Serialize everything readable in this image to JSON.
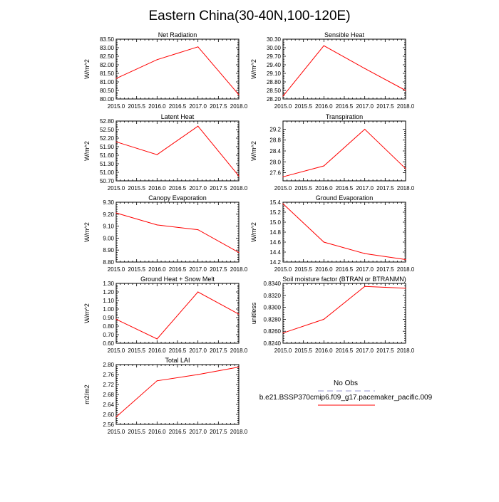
{
  "title": "Eastern China(30-40N,100-120E)",
  "legend": {
    "obs_label": "No Obs",
    "model_label": "b.e21.BSSP370cmip6.f09_g17.pacemaker_pacific.009",
    "obs_color": "#b9b9e0",
    "model_color": "#ff0000"
  },
  "chart_data": [
    {
      "type": "line",
      "title": "Net Radiation",
      "ylabel": "W/m^2",
      "x": [
        2015,
        2016,
        2017,
        2018
      ],
      "values": [
        81.2,
        82.3,
        83.05,
        80.25
      ],
      "xlim": [
        2015,
        2018
      ],
      "ylim": [
        80.0,
        83.5
      ],
      "xticks": [
        "2015.0",
        "2015.5",
        "2016.0",
        "2016.5",
        "2017.0",
        "2017.5",
        "2018.0"
      ],
      "yticks": [
        "80.00",
        "80.50",
        "81.00",
        "81.50",
        "82.00",
        "82.50",
        "83.00",
        "83.50"
      ]
    },
    {
      "type": "line",
      "title": "Sensible Heat",
      "ylabel": "W/m^2",
      "x": [
        2015,
        2016,
        2017,
        2018
      ],
      "values": [
        28.3,
        30.07,
        29.27,
        28.5
      ],
      "xlim": [
        2015,
        2018
      ],
      "ylim": [
        28.2,
        30.3
      ],
      "xticks": [
        "2015.0",
        "2015.5",
        "2016.0",
        "2016.5",
        "2017.0",
        "2017.5",
        "2018.0"
      ],
      "yticks": [
        "28.20",
        "28.50",
        "28.80",
        "29.10",
        "29.40",
        "29.70",
        "30.00",
        "30.30"
      ]
    },
    {
      "type": "line",
      "title": "Latent Heat",
      "ylabel": "W/m^2",
      "x": [
        2015,
        2016,
        2017,
        2018
      ],
      "values": [
        52.07,
        51.62,
        52.62,
        50.87
      ],
      "xlim": [
        2015,
        2018
      ],
      "ylim": [
        50.7,
        52.8
      ],
      "xticks": [
        "2015.0",
        "2015.5",
        "2016.0",
        "2016.5",
        "2017.0",
        "2017.5",
        "2018.0"
      ],
      "yticks": [
        "50.70",
        "51.00",
        "51.30",
        "51.60",
        "51.90",
        "52.20",
        "52.50",
        "52.80"
      ]
    },
    {
      "type": "line",
      "title": "Transpiration",
      "ylabel": "W/m^2",
      "x": [
        2015,
        2016,
        2017,
        2018
      ],
      "values": [
        27.45,
        27.85,
        29.2,
        27.75
      ],
      "xlim": [
        2015,
        2018
      ],
      "ylim": [
        27.3,
        29.5
      ],
      "xticks": [
        "2015.0",
        "2015.5",
        "2016.0",
        "2016.5",
        "2017.0",
        "2017.5",
        "2018.0"
      ],
      "yticks": [
        "27.6",
        "28.0",
        "28.4",
        "28.8",
        "29.2"
      ]
    },
    {
      "type": "line",
      "title": "Canopy Evaporation",
      "ylabel": "W/m^2",
      "x": [
        2015,
        2016,
        2017,
        2018
      ],
      "values": [
        9.21,
        9.11,
        9.07,
        8.88
      ],
      "xlim": [
        2015,
        2018
      ],
      "ylim": [
        8.8,
        9.3
      ],
      "xticks": [
        "2015.0",
        "2015.5",
        "2016.0",
        "2016.5",
        "2017.0",
        "2017.5",
        "2018.0"
      ],
      "yticks": [
        "8.80",
        "8.90",
        "9.00",
        "9.10",
        "9.20",
        "9.30"
      ]
    },
    {
      "type": "line",
      "title": "Ground Evaporation",
      "ylabel": "W/m^2",
      "x": [
        2015,
        2016,
        2017,
        2018
      ],
      "values": [
        15.37,
        14.6,
        14.37,
        14.25
      ],
      "xlim": [
        2015,
        2018
      ],
      "ylim": [
        14.2,
        15.4
      ],
      "xticks": [
        "2015.0",
        "2015.5",
        "2016.0",
        "2016.5",
        "2017.0",
        "2017.5",
        "2018.0"
      ],
      "yticks": [
        "14.2",
        "14.4",
        "14.6",
        "14.8",
        "15.0",
        "15.2",
        "15.4"
      ]
    },
    {
      "type": "line",
      "title": "Ground Heat + Snow Melt",
      "ylabel": "W/m^2",
      "x": [
        2015,
        2016,
        2017,
        2018
      ],
      "values": [
        0.88,
        0.65,
        1.2,
        0.94
      ],
      "xlim": [
        2015,
        2018
      ],
      "ylim": [
        0.6,
        1.3
      ],
      "xticks": [
        "2015.0",
        "2015.5",
        "2016.0",
        "2016.5",
        "2017.0",
        "2017.5",
        "2018.0"
      ],
      "yticks": [
        "0.60",
        "0.70",
        "0.80",
        "0.90",
        "1.00",
        "1.10",
        "1.20",
        "1.30"
      ]
    },
    {
      "type": "line",
      "title": "Soil moisture factor (BTRAN or BTRANMN)",
      "ylabel": "unitless",
      "x": [
        2015,
        2016,
        2017,
        2018
      ],
      "values": [
        0.8257,
        0.828,
        0.8335,
        0.8332
      ],
      "xlim": [
        2015,
        2018
      ],
      "ylim": [
        0.824,
        0.834
      ],
      "xticks": [
        "2015.0",
        "2015.5",
        "2016.0",
        "2016.5",
        "2017.0",
        "2017.5",
        "2018.0"
      ],
      "yticks": [
        "0.8240",
        "0.8260",
        "0.8280",
        "0.8300",
        "0.8320",
        "0.8340"
      ]
    },
    {
      "type": "line",
      "title": "Total LAI",
      "ylabel": "m2/m2",
      "x": [
        2015,
        2016,
        2017,
        2018
      ],
      "values": [
        2.59,
        2.735,
        2.76,
        2.79
      ],
      "xlim": [
        2015,
        2018
      ],
      "ylim": [
        2.56,
        2.8
      ],
      "xticks": [
        "2015.0",
        "2015.5",
        "2016.0",
        "2016.5",
        "2017.0",
        "2017.5",
        "2018.0"
      ],
      "yticks": [
        "2.56",
        "2.60",
        "2.64",
        "2.68",
        "2.72",
        "2.76",
        "2.80"
      ]
    }
  ]
}
